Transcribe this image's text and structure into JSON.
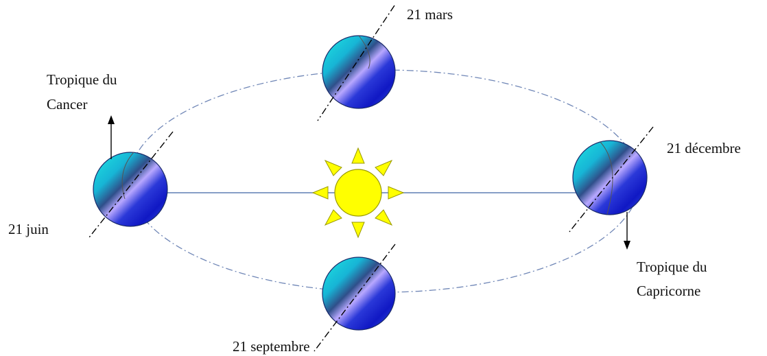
{
  "labels": {
    "march": "21 mars",
    "june": "21 juin",
    "september": "21 septembre",
    "december": "21 décembre",
    "cancer_line1": "Tropique du",
    "cancer_line2": "Cancer",
    "capricorn_line1": "Tropique du",
    "capricorn_line2": "Capricorne"
  },
  "colors": {
    "orbit": "#6f86b6",
    "sun_fill": "#ffff00",
    "sun_stroke": "#9a9a00",
    "axis": "#000000",
    "planet_light": "#17d8d8",
    "planet_mid": "#2f6fbe",
    "planet_dark": "#1020c8",
    "planet_pale": "#b0a4ff"
  },
  "icons": {
    "sun": "sun-icon",
    "earth": "earth-icon"
  }
}
